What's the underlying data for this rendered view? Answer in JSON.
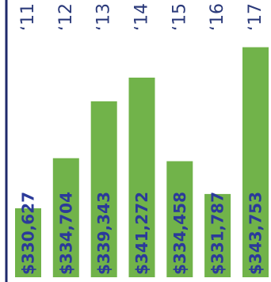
{
  "chart_data": {
    "type": "bar",
    "categories": [
      "‘11",
      "‘12",
      "‘13",
      "‘14",
      "‘15",
      "‘16",
      "‘17"
    ],
    "values": [
      330627,
      334704,
      339343,
      341272,
      334458,
      331787,
      343753
    ],
    "value_labels": [
      "$330,627",
      "$334,704",
      "$339,343",
      "$341,272",
      "$334,458",
      "$331,787",
      "$343,753"
    ],
    "title": "",
    "xlabel": "",
    "ylabel": "",
    "ylim": [
      325000,
      344500
    ],
    "grid": false,
    "legend": "none",
    "colors": {
      "bar": "#71b34a",
      "value_label": "#2b3a9a",
      "year_label": "#2b3a7a",
      "axis": "#1f2a6b"
    }
  }
}
